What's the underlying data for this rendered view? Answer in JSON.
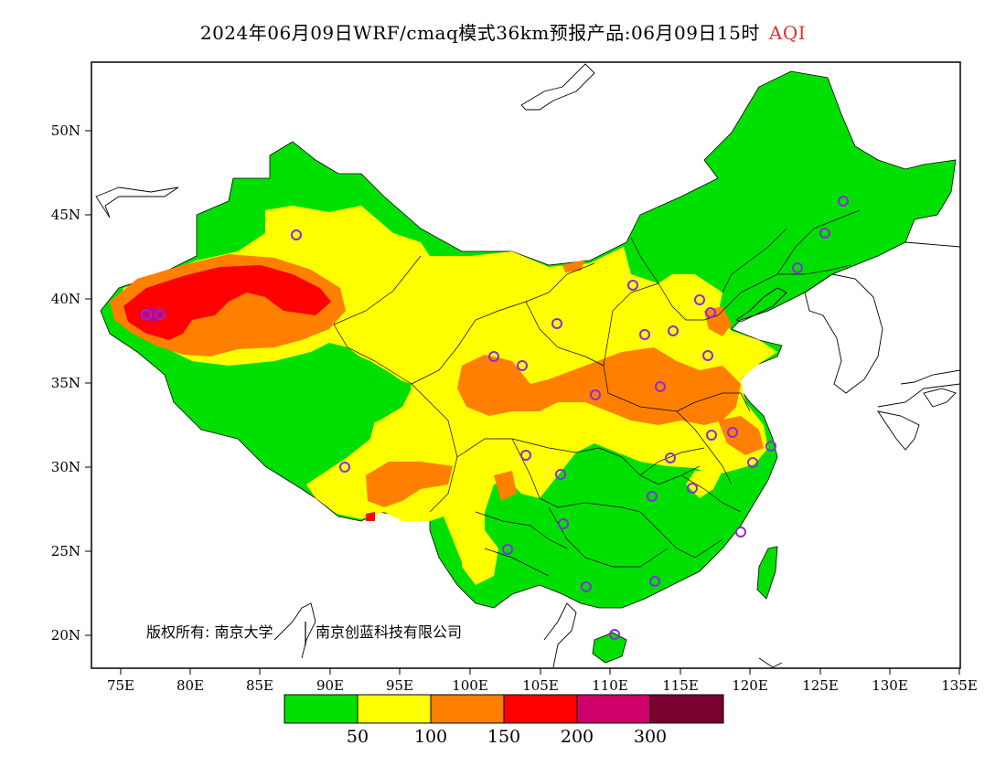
{
  "title": {
    "main": "2024年06月09日WRF/cmaq模式36km预报产品:06月09日15时",
    "product": "AQI",
    "product_color": "#e03030"
  },
  "axes": {
    "lat_labels": [
      "50N",
      "45N",
      "40N",
      "35N",
      "30N",
      "25N",
      "20N"
    ],
    "lon_labels": [
      "75E",
      "80E",
      "85E",
      "90E",
      "95E",
      "100E",
      "105E",
      "110E",
      "115E",
      "120E",
      "125E",
      "130E",
      "135E"
    ]
  },
  "copyright": {
    "owner1": "版权所有: 南京大学",
    "owner2": "南京创蓝科技有限公司"
  },
  "legend": {
    "colors": [
      "#00e000",
      "#ffff00",
      "#ff8000",
      "#ff0000",
      "#d0006a",
      "#7a0030"
    ],
    "labels": [
      "50",
      "100",
      "150",
      "200",
      "300"
    ]
  },
  "colors": {
    "good": "#00e000",
    "moderate": "#ffff00",
    "sensitive": "#ff8000",
    "unhealthy": "#ff0000",
    "very_unhealthy": "#d0006a",
    "station_marker": "#8a2be2"
  }
}
